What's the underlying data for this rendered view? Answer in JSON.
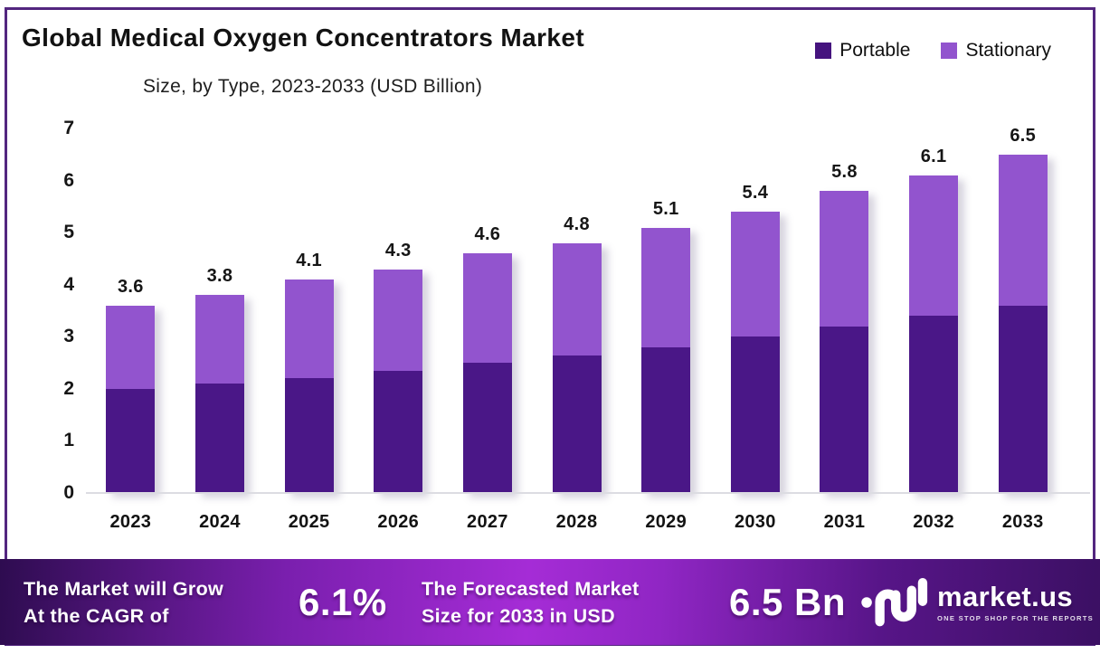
{
  "title": "Global Medical Oxygen Concentrators Market",
  "subtitle": "Size, by Type, 2023-2033 (USD Billion)",
  "legend": [
    {
      "label": "Portable",
      "color": "#45137e"
    },
    {
      "label": "Stationary",
      "color": "#9254ce"
    }
  ],
  "chart_data": {
    "type": "bar",
    "stacked": true,
    "title": "Global Medical Oxygen Concentrators Market Size, by Type, 2023-2033 (USD Billion)",
    "categories": [
      "2023",
      "2024",
      "2025",
      "2026",
      "2027",
      "2028",
      "2029",
      "2030",
      "2031",
      "2032",
      "2033"
    ],
    "series": [
      {
        "name": "Portable",
        "color": "#4a1787",
        "values": [
          2.0,
          2.1,
          2.2,
          2.35,
          2.5,
          2.65,
          2.8,
          3.0,
          3.2,
          3.4,
          3.6
        ]
      },
      {
        "name": "Stationary",
        "color": "#9254ce",
        "values": [
          1.6,
          1.7,
          1.9,
          1.95,
          2.1,
          2.15,
          2.3,
          2.4,
          2.6,
          2.7,
          2.9
        ]
      }
    ],
    "totals": [
      3.6,
      3.8,
      4.1,
      4.3,
      4.6,
      4.8,
      5.1,
      5.4,
      5.8,
      6.1,
      6.5
    ],
    "total_labels": [
      "3.6",
      "3.8",
      "4.1",
      "4.3",
      "4.6",
      "4.8",
      "5.1",
      "5.4",
      "5.8",
      "6.1",
      "6.5"
    ],
    "xlabel": "",
    "ylabel": "",
    "ylim": [
      0,
      7
    ],
    "yticks": [
      0,
      1,
      2,
      3,
      4,
      5,
      6,
      7
    ],
    "grid": false,
    "legend_position": "top-right"
  },
  "footer": {
    "cagr_label_line1": "The Market will Grow",
    "cagr_label_line2": "At the CAGR of",
    "cagr_value": "6.1%",
    "forecast_label_line1": "The Forecasted Market",
    "forecast_label_line2": "Size for 2033 in USD",
    "forecast_value": "6.5 Bn",
    "brand_name": "market.us",
    "brand_tagline": "ONE STOP SHOP FOR THE REPORTS"
  },
  "colors": {
    "portable": "#4a1787",
    "stationary": "#9254ce",
    "frame_border": "#53267f",
    "axis_line": "#dcdce2",
    "banner_left": "#2e0c50",
    "banner_mid": "#a52cd6",
    "banner_right": "#3b1063",
    "text": "#121212",
    "banner_text": "#ffffff"
  }
}
